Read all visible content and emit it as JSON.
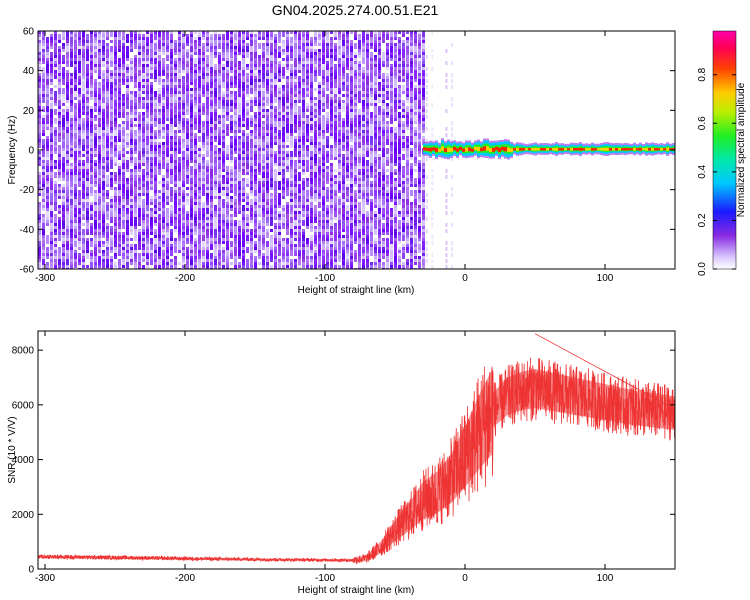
{
  "title": "GN04.2025.274.00.51.E21",
  "chart_data": [
    {
      "type": "heatmap",
      "name": "spectrogram",
      "xlabel": "Height of straight line (km)",
      "ylabel": "Frequency (Hz)",
      "xlim": [
        -305,
        150
      ],
      "ylim": [
        -60,
        60
      ],
      "xticks": [
        -300,
        -200,
        -100,
        0,
        100
      ],
      "yticks": [
        -60,
        -40,
        -20,
        0,
        20,
        40,
        60
      ],
      "noise_region_x": [
        -305,
        -30
      ],
      "tonal_line": {
        "frequency_hz": 0,
        "start_x": -30,
        "end_x": 150,
        "peak_amplitude": 0.95
      },
      "colorbar": {
        "label": "Normalized spectral amplitude",
        "range": [
          0,
          0.98
        ],
        "ticks": [
          0,
          0.2,
          0.4,
          0.6,
          0.8
        ],
        "tick_labels": [
          "0.0",
          "0.2",
          "0.4",
          "0.6",
          "0.8"
        ]
      }
    },
    {
      "type": "line",
      "name": "snr",
      "xlabel": "Height of straight line (km)",
      "ylabel": "SNR (10 * V/V)",
      "xlim": [
        -305,
        150
      ],
      "ylim": [
        0,
        8700
      ],
      "xticks": [
        -300,
        -200,
        -100,
        0,
        100
      ],
      "yticks": [
        0,
        2000,
        4000,
        6000,
        8000
      ],
      "color": "#ee3333",
      "envelope": {
        "x": [
          -305,
          -250,
          -200,
          -150,
          -100,
          -80,
          -70,
          -60,
          -50,
          -40,
          -30,
          -20,
          -10,
          0,
          10,
          20,
          30,
          40,
          50,
          60,
          80,
          100,
          120,
          150
        ],
        "y": [
          450,
          420,
          380,
          350,
          330,
          320,
          400,
          800,
          1400,
          1900,
          2500,
          2800,
          3300,
          4100,
          5000,
          5800,
          6300,
          6500,
          6600,
          6500,
          6300,
          6100,
          5900,
          5700
        ]
      },
      "noise_spread": 0.18,
      "series_peak": {
        "x": 50,
        "y": 8600
      }
    }
  ]
}
